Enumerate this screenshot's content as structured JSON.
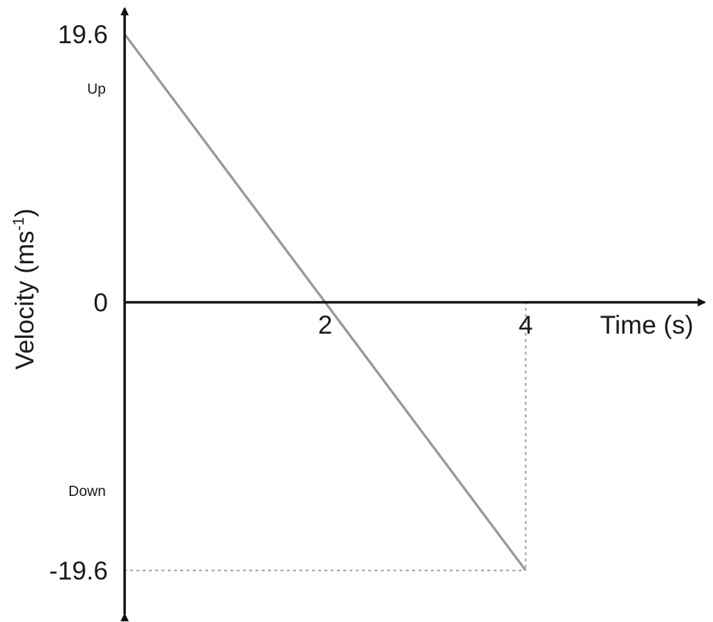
{
  "chart_data": {
    "type": "line",
    "title": "",
    "xlabel": "Time (s)",
    "ylabel": "Velocity (ms",
    "ylabel_superscript": "-1",
    "ylabel_suffix": ")",
    "xlim": [
      0,
      4.3
    ],
    "ylim": [
      -19.6,
      19.6
    ],
    "grid": false,
    "legend": "none",
    "x_ticks": [
      {
        "value": 2,
        "label": "2"
      },
      {
        "value": 4,
        "label": "4"
      }
    ],
    "y_ticks": [
      {
        "value": 19.6,
        "label": "19.6"
      },
      {
        "value": 0,
        "label": "0"
      },
      {
        "value": -19.6,
        "label": "-19.6"
      }
    ],
    "annotations": [
      {
        "text": "Up",
        "y": 15.6
      },
      {
        "text": "Down",
        "y": -13.8
      }
    ],
    "series": [
      {
        "x": [
          0,
          4
        ],
        "y": [
          19.6,
          -19.6
        ],
        "color": "#999999"
      }
    ],
    "guides": [
      {
        "x": [
          4,
          4
        ],
        "y": [
          0,
          -19.6
        ],
        "style": "dotted"
      },
      {
        "x": [
          0,
          4
        ],
        "y": [
          -19.6,
          -19.6
        ],
        "style": "dotted"
      }
    ],
    "colors": {
      "axis": "#111111",
      "line": "#999999",
      "guide": "#aaaaaa"
    }
  }
}
